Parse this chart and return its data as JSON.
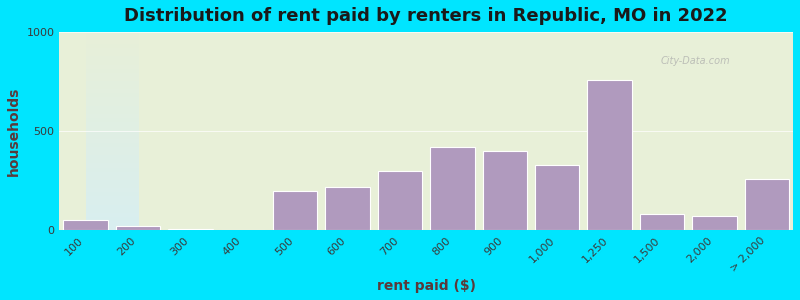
{
  "categories": [
    "100",
    "200",
    "300",
    "400",
    "500",
    "600",
    "700",
    "800",
    "900",
    "1,000",
    "1,250",
    "1,500",
    "2,000",
    "> 2,000"
  ],
  "values": [
    50,
    20,
    5,
    2,
    200,
    220,
    300,
    420,
    400,
    330,
    760,
    80,
    70,
    260
  ],
  "bar_color": "#b09abe",
  "bar_edge_color": "#ffffff",
  "title": "Distribution of rent paid by renters in Republic, MO in 2022",
  "xlabel": "rent paid ($)",
  "ylabel": "households",
  "ylim": [
    0,
    1000
  ],
  "yticks": [
    0,
    500,
    1000
  ],
  "background_outer": "#00e5ff",
  "background_inner_top": "#e8f0d8",
  "background_inner_bottom": "#d8eef0",
  "title_fontsize": 13,
  "axis_label_fontsize": 10,
  "tick_fontsize": 8,
  "watermark": "City-Data.com"
}
